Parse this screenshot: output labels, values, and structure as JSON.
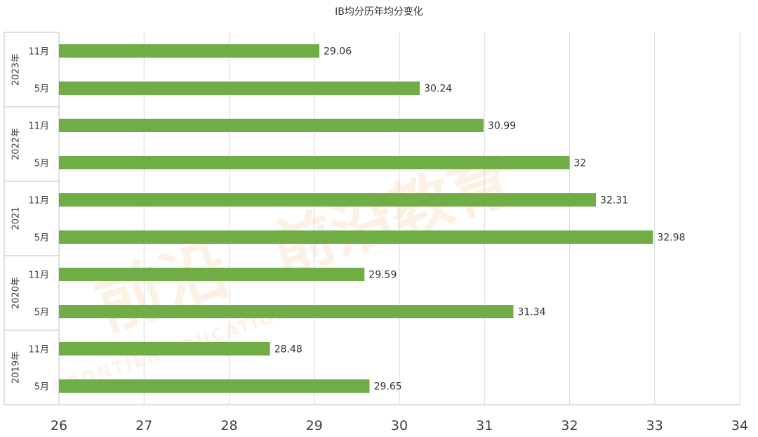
{
  "chart_data": {
    "type": "bar",
    "orientation": "horizontal",
    "title": "IB均分历年均分变化",
    "groups": [
      {
        "label": "2023年",
        "categories": [
          "11月",
          "5月"
        ],
        "values": [
          29.06,
          30.24
        ]
      },
      {
        "label": "2022年",
        "categories": [
          "11月",
          "5月"
        ],
        "values": [
          30.99,
          32
        ]
      },
      {
        "label": "2021",
        "categories": [
          "11月",
          "5月"
        ],
        "values": [
          32.31,
          32.98
        ]
      },
      {
        "label": "2020年",
        "categories": [
          "11月",
          "5月"
        ],
        "values": [
          29.59,
          31.34
        ]
      },
      {
        "label": "2019年",
        "categories": [
          "11月",
          "5月"
        ],
        "values": [
          28.48,
          29.65
        ]
      }
    ],
    "xlim": [
      26,
      34
    ],
    "xticks": [
      26,
      27,
      28,
      29,
      30,
      31,
      32,
      33,
      34
    ],
    "grid": true,
    "data_labels": true,
    "bar_color": "#70ad47"
  },
  "watermark": {
    "text": "前沿教育",
    "subtext": "FRONTIER EDUCATION",
    "color": "#f7b98a"
  }
}
